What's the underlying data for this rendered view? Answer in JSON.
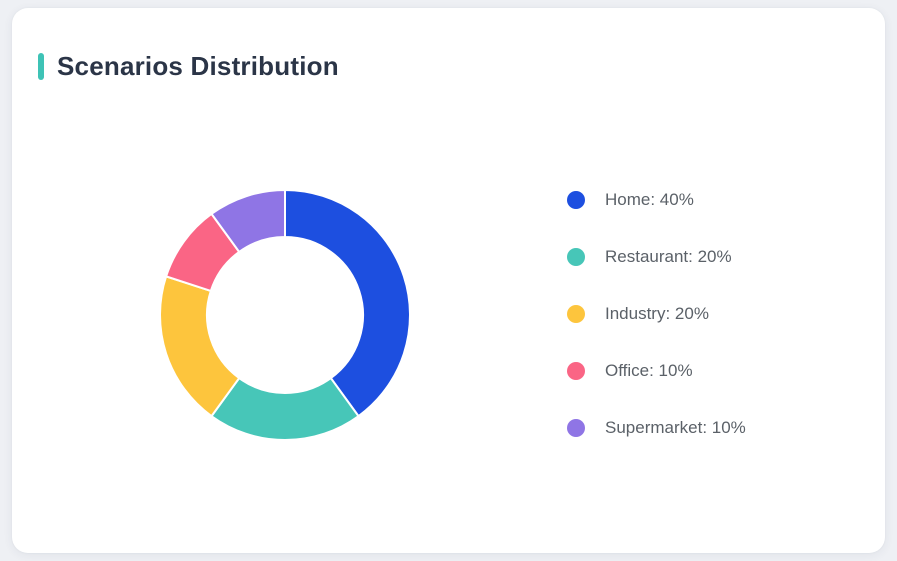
{
  "page": {
    "background_color": "#eef0f4"
  },
  "card": {
    "background_color": "#ffffff"
  },
  "header": {
    "title": "Scenarios Distribution",
    "accent_color": "#3ec3b6"
  },
  "chart_data": {
    "type": "pie",
    "subtype": "donut",
    "title": "Scenarios Distribution",
    "segments": [
      {
        "label": "Home",
        "value": 40,
        "unit": "%",
        "color": "#1d4fe0"
      },
      {
        "label": "Restaurant",
        "value": 20,
        "unit": "%",
        "color": "#47c6b8"
      },
      {
        "label": "Industry",
        "value": 20,
        "unit": "%",
        "color": "#fdc53d"
      },
      {
        "label": "Office",
        "value": 10,
        "unit": "%",
        "color": "#fa6585"
      },
      {
        "label": "Supermarket",
        "value": 10,
        "unit": "%",
        "color": "#8f75e5"
      }
    ],
    "start_angle": "top",
    "direction": "clockwise",
    "inner_radius_ratio": 0.62,
    "separator_color": "#ffffff",
    "legend_position": "right",
    "legend_format": "{label}: {value}%"
  }
}
